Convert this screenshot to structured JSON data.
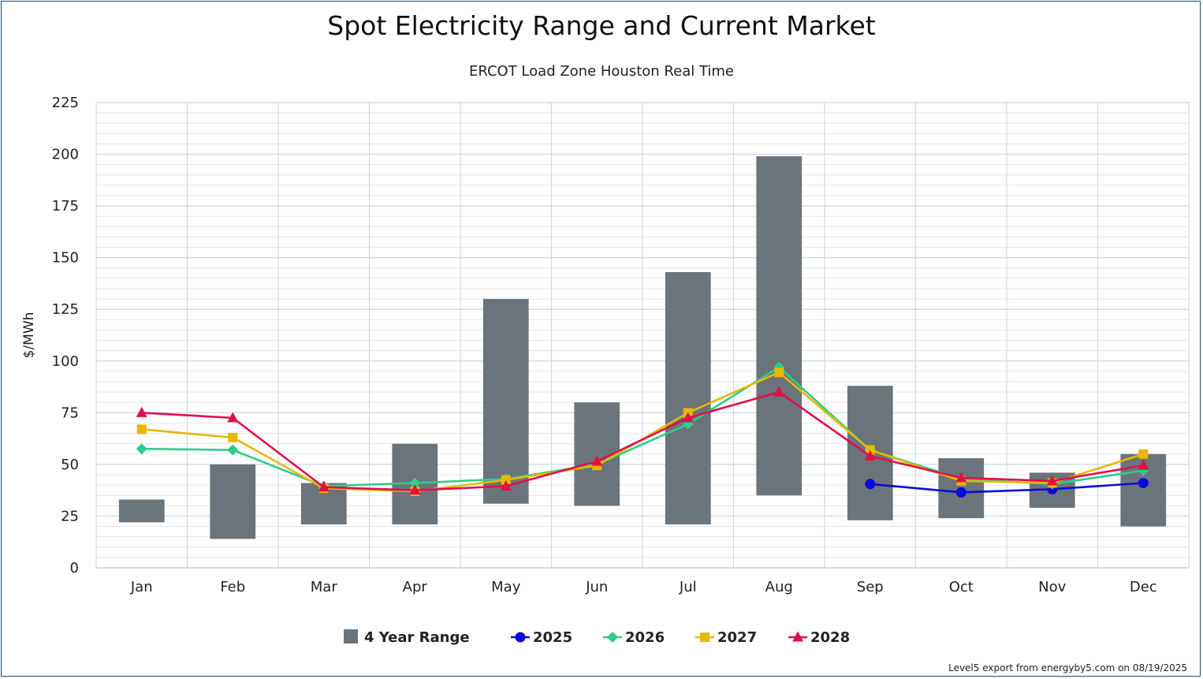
{
  "chart_data": {
    "type": "bar",
    "title": "Spot Electricity Range and Current Market",
    "subtitle": "ERCOT Load Zone Houston Real Time",
    "xlabel": "",
    "ylabel": "$/MWh",
    "ylim": [
      0,
      225
    ],
    "yticks": [
      0,
      25,
      50,
      75,
      100,
      125,
      150,
      175,
      200,
      225
    ],
    "categories": [
      "Jan",
      "Feb",
      "Mar",
      "Apr",
      "May",
      "Jun",
      "Jul",
      "Aug",
      "Sep",
      "Oct",
      "Nov",
      "Dec"
    ],
    "range_series": {
      "name": "4 Year Range",
      "color": "#6b737b",
      "low": [
        22,
        14,
        21,
        21,
        31,
        30,
        21,
        35,
        23,
        24,
        29,
        20
      ],
      "high": [
        33,
        50,
        41,
        60,
        130,
        80,
        143,
        199,
        88,
        53,
        46,
        55
      ]
    },
    "series": [
      {
        "name": "2025",
        "color": "#0a0adc",
        "marker": "circle",
        "values": [
          null,
          null,
          null,
          null,
          null,
          null,
          null,
          null,
          40.5,
          36.5,
          38,
          41
        ]
      },
      {
        "name": "2026",
        "color": "#2ecc8a",
        "marker": "diamond",
        "values": [
          57.5,
          57,
          39.5,
          41,
          43,
          50,
          69.5,
          97,
          57,
          43,
          40.5,
          47
        ]
      },
      {
        "name": "2027",
        "color": "#e8b800",
        "marker": "square",
        "values": [
          67,
          63,
          38.5,
          37,
          42.5,
          49.5,
          75,
          94.5,
          57,
          42,
          41,
          55
        ]
      },
      {
        "name": "2028",
        "color": "#e0104a",
        "marker": "triangle",
        "values": [
          75,
          72.5,
          39,
          37.5,
          39.5,
          51.5,
          72.5,
          85,
          54,
          43.5,
          42,
          49.5
        ]
      }
    ],
    "grid": true,
    "legend_position": "bottom"
  },
  "footer": {
    "credit": "Level5 export from energyby5.com on 08/19/2025"
  }
}
